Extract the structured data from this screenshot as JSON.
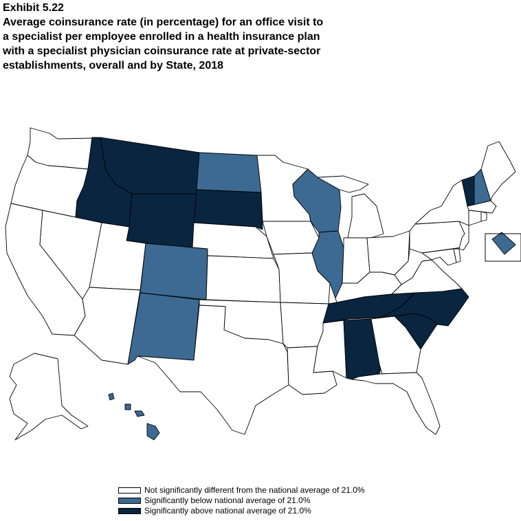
{
  "header": {
    "exhibit": "Exhibit 5.22",
    "title_lines": [
      "Average coinsurance rate (in percentage) for an office visit to",
      "a specialist per employee enrolled in a health insurance plan",
      "with a specialist physician coinsurance rate at private-sector",
      "establishments, overall and by State, 2018"
    ]
  },
  "colors": {
    "not_significant": "#ffffff",
    "below": "#3d6a93",
    "above": "#0a2540"
  },
  "legend": [
    {
      "category": "not_significant",
      "label": "Not significantly different from the national average of 21.0%"
    },
    {
      "category": "below",
      "label": "Significantly below national average of 21.0%"
    },
    {
      "category": "above",
      "label": "Significantly above national average of 21.0%"
    }
  ],
  "states": {
    "WA": "not_significant",
    "OR": "not_significant",
    "CA": "not_significant",
    "NV": "not_significant",
    "ID": "above",
    "MT": "above",
    "WY": "above",
    "SD": "above",
    "UT": "not_significant",
    "AZ": "not_significant",
    "CO": "below",
    "NM": "below",
    "ND": "below",
    "NE": "not_significant",
    "KS": "not_significant",
    "OK": "not_significant",
    "TX": "not_significant",
    "MN": "not_significant",
    "IA": "not_significant",
    "MO": "not_significant",
    "AR": "not_significant",
    "LA": "not_significant",
    "WI": "below",
    "IL": "below",
    "MI": "not_significant",
    "IN": "not_significant",
    "OH": "not_significant",
    "KY": "not_significant",
    "TN": "above",
    "MS": "not_significant",
    "AL": "above",
    "GA": "not_significant",
    "FL": "not_significant",
    "SC": "above",
    "NC": "above",
    "VA": "not_significant",
    "WV": "not_significant",
    "PA": "not_significant",
    "NY": "not_significant",
    "VT": "above",
    "NH": "below",
    "ME": "not_significant",
    "MA": "not_significant",
    "CT": "not_significant",
    "RI": "not_significant",
    "NJ": "not_significant",
    "DE": "not_significant",
    "MD": "not_significant",
    "DC": "below",
    "AK": "not_significant",
    "HI": "below"
  }
}
